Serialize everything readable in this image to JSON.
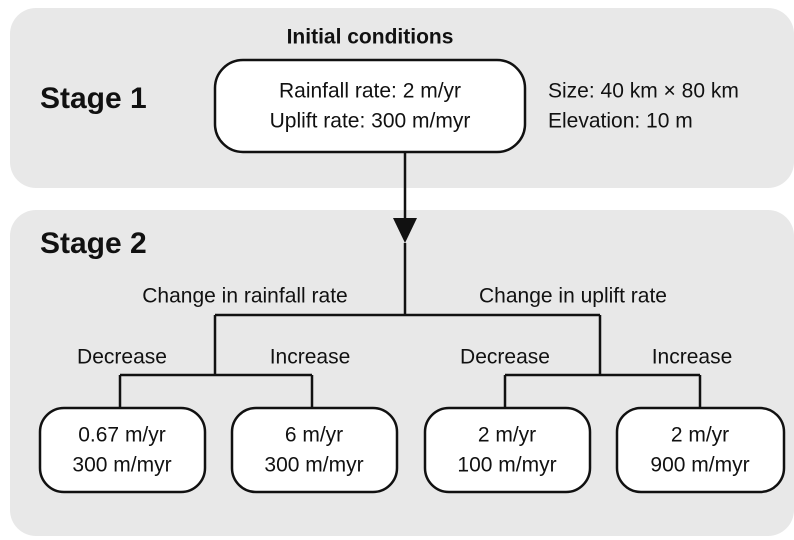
{
  "stage1": {
    "label": "Stage 1",
    "initial_conditions": {
      "title": "Initial conditions",
      "lines": [
        "Rainfall rate: 2 m/yr",
        "Uplift rate: 300 m/myr"
      ]
    },
    "domain": [
      "Size: 40 km × 80 km",
      "Elevation: 10 m"
    ]
  },
  "stage2": {
    "label": "Stage 2",
    "branches": [
      {
        "label": "Change in rainfall rate",
        "options": [
          {
            "label": "Decrease",
            "lines": [
              "0.67 m/yr",
              "300 m/myr"
            ]
          },
          {
            "label": "Increase",
            "lines": [
              "6 m/yr",
              "300 m/myr"
            ]
          }
        ]
      },
      {
        "label": "Change in uplift rate",
        "options": [
          {
            "label": "Decrease",
            "lines": [
              "2 m/yr",
              "100 m/myr"
            ]
          },
          {
            "label": "Increase",
            "lines": [
              "2 m/yr",
              "900 m/myr"
            ]
          }
        ]
      }
    ]
  }
}
